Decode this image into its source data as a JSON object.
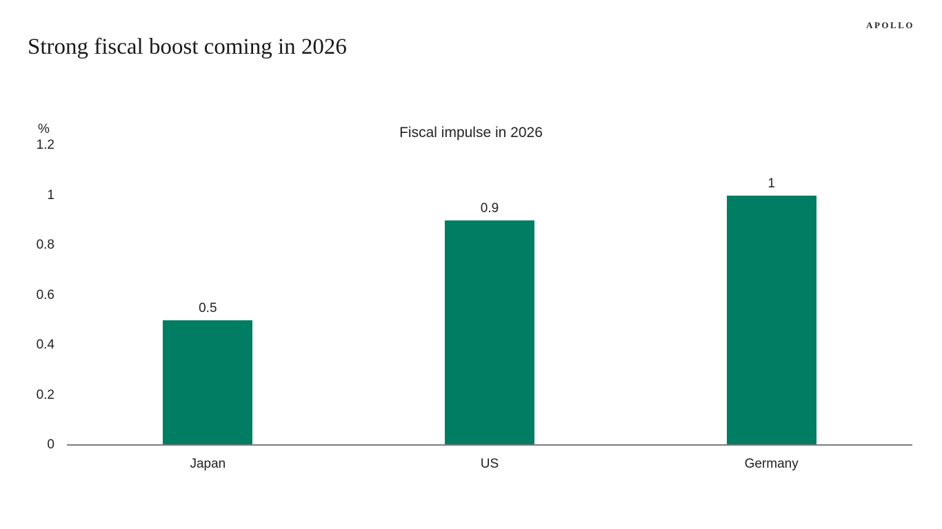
{
  "page": {
    "title": "Strong fiscal boost coming in 2026",
    "brand": "APOLLO"
  },
  "chart_data": {
    "type": "bar",
    "title": "Fiscal impulse in 2026",
    "unit_label": "%",
    "categories": [
      "Japan",
      "US",
      "Germany"
    ],
    "values": [
      0.5,
      0.9,
      1
    ],
    "value_labels": [
      "0.5",
      "0.9",
      "1"
    ],
    "ylim": [
      0,
      1.2
    ],
    "yticks": [
      0,
      0.2,
      0.4,
      0.6,
      0.8,
      1,
      1.2
    ],
    "ytick_labels": [
      "0",
      "0.2",
      "0.4",
      "0.6",
      "0.8",
      "1",
      "1.2"
    ],
    "xlabel": "",
    "ylabel": "%",
    "bar_color": "#007d62",
    "axis_color": "#7a7a7a",
    "grid": false,
    "legend": false
  }
}
